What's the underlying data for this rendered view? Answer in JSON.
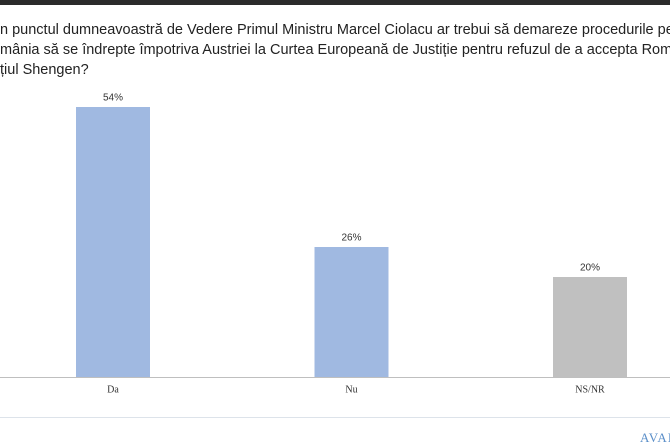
{
  "chart_data": {
    "type": "bar",
    "title_lines": [
      "n punctul dumneavoastră de Vedere Primul Ministru Marcel Ciolacu ar trebui să demareze procedurile pent",
      "mânia să se îndrepte împotriva Austriei la Curtea Europeană de Justiție pentru refuzul de a accepta Români",
      "țiul Shengen?"
    ],
    "categories": [
      "Da",
      "Nu",
      "NS/NR"
    ],
    "values": [
      54,
      26,
      20
    ],
    "value_labels": [
      "54%",
      "26%",
      "20%"
    ],
    "colors": [
      "#a0b9e1",
      "#a0b9e1",
      "#c0c0c0"
    ],
    "watermark": "AVAN"
  }
}
